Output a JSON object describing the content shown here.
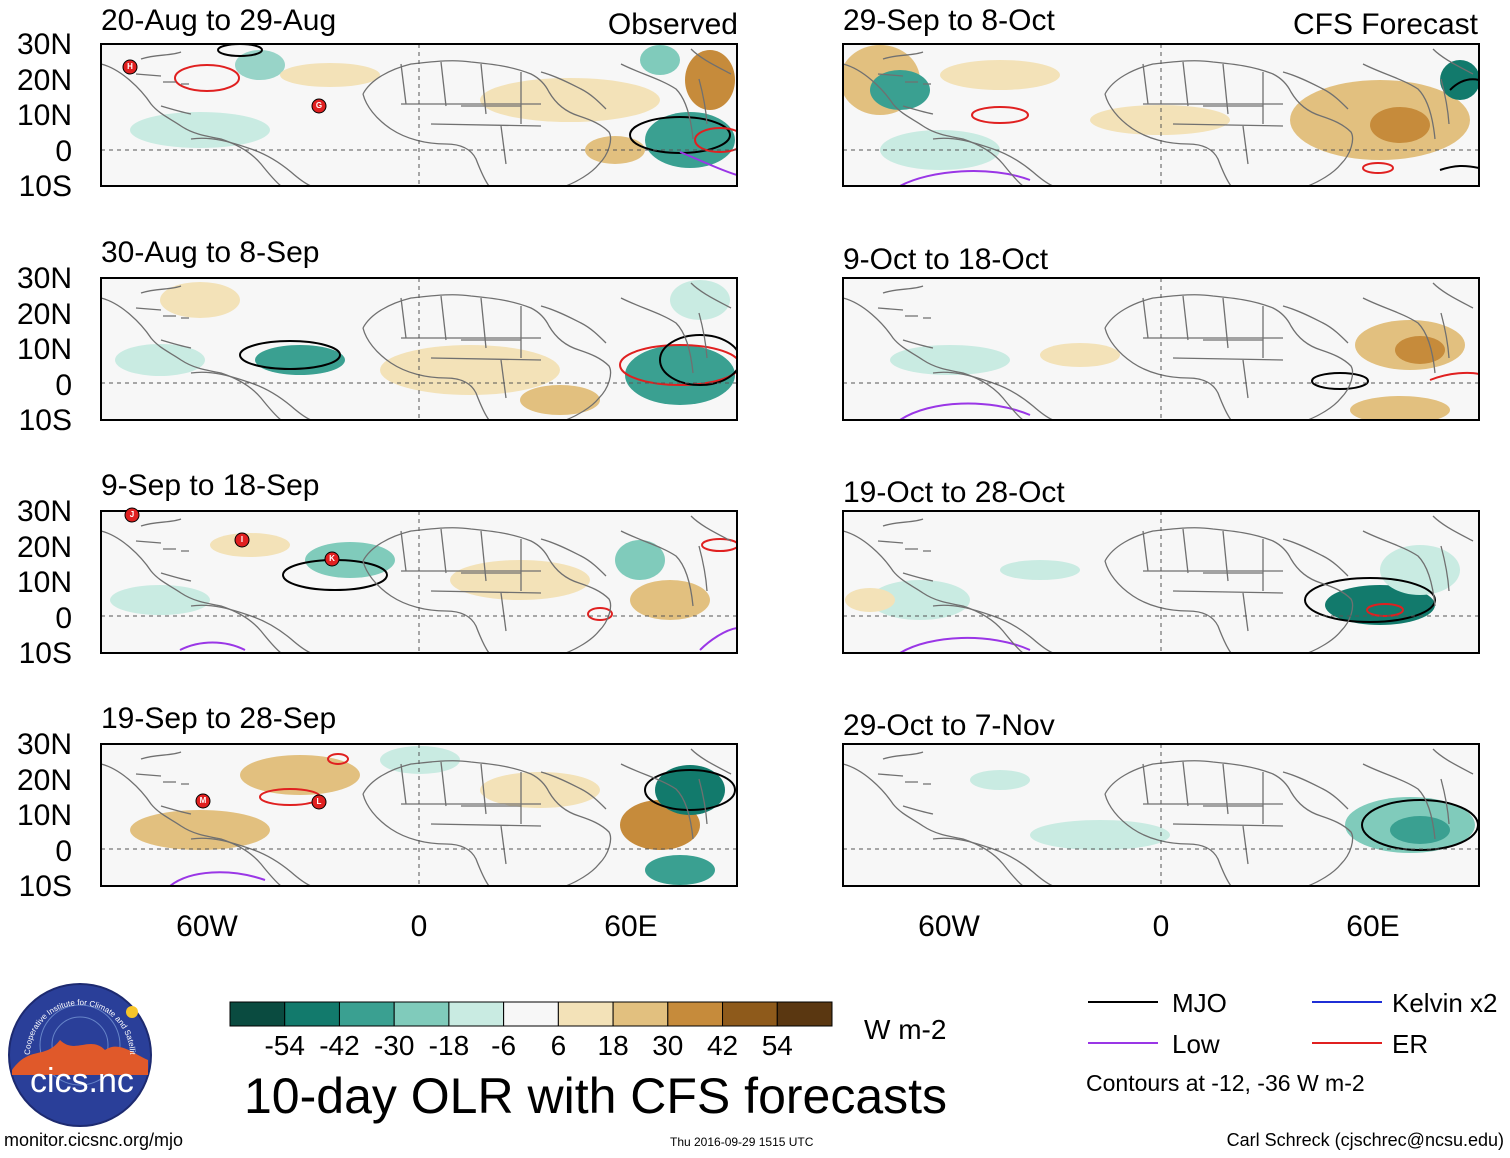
{
  "title": "10-day OLR with CFS forecasts",
  "header": {
    "left_label": "Observed",
    "right_label": "CFS Forecast"
  },
  "panels": {
    "observed": [
      {
        "period": "20-Aug to 29-Aug",
        "storms": [
          "H",
          "G"
        ]
      },
      {
        "period": "30-Aug to 8-Sep",
        "storms": []
      },
      {
        "period": "9-Sep to 18-Sep",
        "storms": [
          "J",
          "I",
          "K"
        ]
      },
      {
        "period": "19-Sep to 28-Sep",
        "storms": [
          "M",
          "L"
        ]
      }
    ],
    "forecast": [
      {
        "period": "29-Sep to 8-Oct"
      },
      {
        "period": "9-Oct to 18-Oct"
      },
      {
        "period": "19-Oct to 28-Oct"
      },
      {
        "period": "29-Oct to 7-Nov"
      }
    ]
  },
  "axes": {
    "lat_labels": [
      "30N",
      "20N",
      "10N",
      "0",
      "10S"
    ],
    "lon_labels": [
      "60W",
      "0",
      "60E"
    ]
  },
  "colorbar": {
    "ticks": [
      "-54",
      "-42",
      "-30",
      "-18",
      "-6",
      "6",
      "18",
      "30",
      "42",
      "54"
    ],
    "colors": [
      "#0a4b40",
      "#127a6c",
      "#3aa091",
      "#80cbbb",
      "#c9ebe2",
      "#f7f7f7",
      "#f3e2b8",
      "#e2c07f",
      "#c68b3b",
      "#8e5a1b",
      "#5a3711"
    ],
    "units": "W m-2"
  },
  "legend": {
    "items": [
      {
        "label": "MJO",
        "color": "#000000"
      },
      {
        "label": "Kelvin x2",
        "color": "#1f2fd6"
      },
      {
        "label": "Low",
        "color": "#9a36e6"
      },
      {
        "label": "ER",
        "color": "#e02020"
      }
    ],
    "note": "Contours at -12, -36 W m-2"
  },
  "logo": {
    "text": "cics.nc",
    "ring_text": "Cooperative Institute for Climate and Satellites"
  },
  "footer": {
    "left": "monitor.cicsnc.org/mjo",
    "center": "Thu 2016-09-29 1515 UTC",
    "right": "Carl Schreck (cjschrec@ncsu.edu)"
  }
}
